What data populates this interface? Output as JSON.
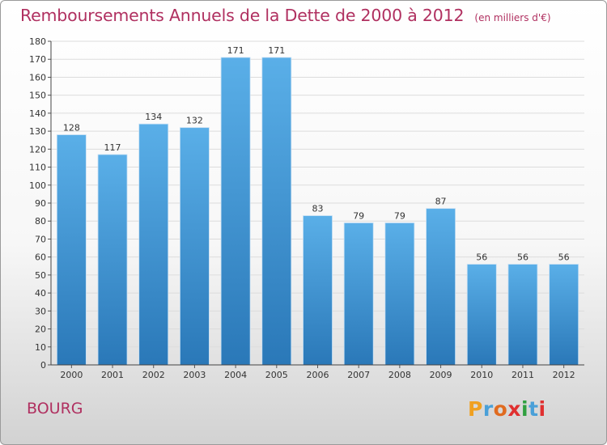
{
  "header": {
    "title": "Remboursements Annuels de la Dette de 2000 à 2012",
    "subtitle": "(en milliers d'€)"
  },
  "footer": {
    "commune": "BOURG",
    "logo_text": "Proxiti",
    "logo_colors": [
      "#f0a020",
      "#4aa0d8",
      "#e06b20",
      "#e03030",
      "#30a040",
      "#4aa0d8",
      "#e03030"
    ]
  },
  "chart_data": {
    "type": "bar",
    "categories": [
      "2000",
      "2001",
      "2002",
      "2003",
      "2004",
      "2005",
      "2006",
      "2007",
      "2008",
      "2009",
      "2010",
      "2011",
      "2012"
    ],
    "values": [
      128,
      117,
      134,
      132,
      171,
      171,
      83,
      79,
      79,
      87,
      56,
      56,
      56
    ],
    "ylim": [
      0,
      180
    ],
    "yticks": [
      0,
      10,
      20,
      30,
      40,
      50,
      60,
      70,
      80,
      90,
      100,
      110,
      120,
      130,
      140,
      150,
      160,
      170,
      180
    ],
    "grid": true,
    "bar_color_top": "#5aafe8",
    "bar_color_bottom": "#2a78b8"
  }
}
